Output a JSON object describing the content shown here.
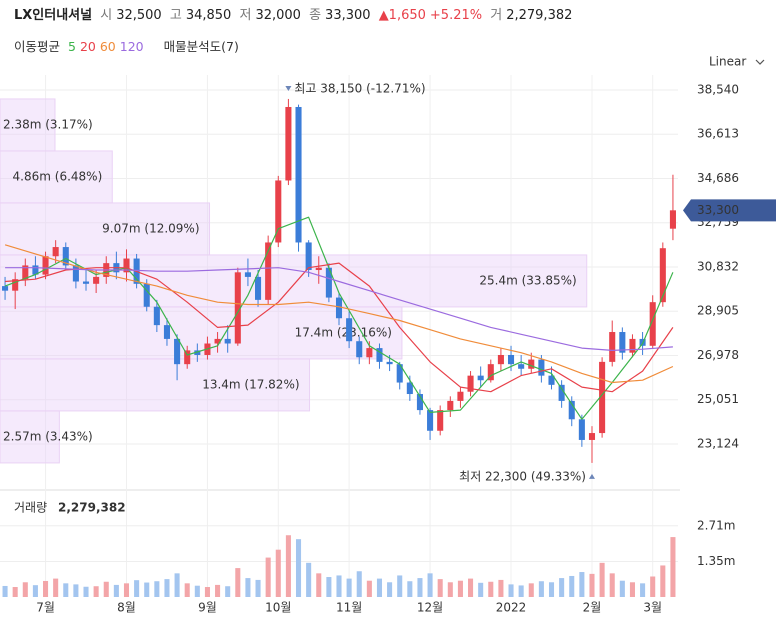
{
  "header": {
    "name": "LX인터내셔널",
    "open_label": "시",
    "open": "32,500",
    "high_label": "고",
    "high": "34,850",
    "low_label": "저",
    "low": "32,000",
    "close_label": "종",
    "close": "33,300",
    "change": "▲1,650",
    "change_pct": "+5.21%",
    "volume_label": "거",
    "volume": "2,279,382"
  },
  "chart_data": {
    "type": "candlestick",
    "scale_label": "Linear",
    "xlim": [
      -0.5,
      66.5
    ],
    "xticks": [
      {
        "value": 4,
        "label": "7월"
      },
      {
        "value": 12,
        "label": "8월"
      },
      {
        "value": 20,
        "label": "9월"
      },
      {
        "value": 27,
        "label": "10월"
      },
      {
        "value": 34,
        "label": "11월"
      },
      {
        "value": 42,
        "label": "12월"
      },
      {
        "value": 50,
        "label": "2022"
      },
      {
        "value": 58,
        "label": "2월"
      },
      {
        "value": 64,
        "label": "3월"
      }
    ],
    "ylim": [
      21338,
      38975
    ],
    "yticks": [
      {
        "value": 38540,
        "label": "38,540"
      },
      {
        "value": 36613,
        "label": "36,613"
      },
      {
        "value": 34686,
        "label": "34,686"
      },
      {
        "value": 32759,
        "label": "32,759"
      },
      {
        "value": 30832,
        "label": "30,832"
      },
      {
        "value": 28905,
        "label": "28,905"
      },
      {
        "value": 26978,
        "label": "26,978"
      },
      {
        "value": 25051,
        "label": "25,051"
      },
      {
        "value": 23124,
        "label": "23,124"
      }
    ],
    "grid": true,
    "up_color": "#e8414a",
    "down_color": "#3b7dd8",
    "open": [
      30000,
      29800,
      30300,
      30900,
      30500,
      31300,
      31700,
      30900,
      30200,
      30100,
      30400,
      31000,
      30600,
      31200,
      30100,
      29100,
      28300,
      27700,
      26600,
      27200,
      27000,
      27500,
      27700,
      27500,
      30600,
      30400,
      29400,
      31900,
      34600,
      37800,
      31900,
      30700,
      30800,
      29500,
      28600,
      27600,
      26900,
      27300,
      26700,
      26600,
      25800,
      25300,
      24600,
      23700,
      24600,
      25000,
      25400,
      26100,
      25900,
      26600,
      27000,
      26600,
      26400,
      26800,
      26100,
      25700,
      25000,
      24200,
      23300,
      23600,
      26700,
      28000,
      27100,
      27700,
      27400,
      29300,
      32500
    ],
    "high": [
      30400,
      30600,
      31200,
      31300,
      31500,
      32000,
      31900,
      31200,
      30700,
      30700,
      31300,
      31500,
      31600,
      31400,
      30300,
      29400,
      28600,
      27900,
      27400,
      27500,
      27800,
      28000,
      28300,
      30800,
      31200,
      30700,
      32200,
      34800,
      38150,
      37900,
      32000,
      31300,
      31000,
      29700,
      28900,
      27800,
      27600,
      27500,
      27000,
      26700,
      26100,
      25500,
      24700,
      24800,
      25200,
      25600,
      26300,
      26500,
      26800,
      27300,
      27400,
      27000,
      27100,
      27000,
      26500,
      25900,
      25200,
      24400,
      23900,
      26900,
      28500,
      28200,
      27900,
      28000,
      29600,
      31900,
      34850
    ],
    "low": [
      29400,
      29000,
      30000,
      30300,
      30300,
      31000,
      30700,
      29900,
      29800,
      29700,
      30100,
      30300,
      30200,
      29900,
      28900,
      28000,
      27400,
      25900,
      26400,
      26700,
      26800,
      27100,
      27100,
      27400,
      30000,
      29100,
      29200,
      31700,
      34400,
      31500,
      30400,
      30100,
      29300,
      28300,
      27300,
      26600,
      26600,
      26400,
      26300,
      25500,
      25000,
      24400,
      23300,
      23500,
      24300,
      24700,
      25200,
      25600,
      25800,
      26300,
      26300,
      26100,
      26200,
      25800,
      25500,
      24700,
      23900,
      23000,
      22300,
      23400,
      26500,
      26800,
      26900,
      27000,
      27300,
      29100,
      32000
    ],
    "close": [
      29800,
      30300,
      30900,
      30500,
      31300,
      31700,
      30900,
      30200,
      30100,
      30400,
      31000,
      30600,
      31200,
      30100,
      29100,
      28300,
      27700,
      26600,
      27200,
      27000,
      27500,
      27700,
      27500,
      30600,
      30400,
      29400,
      31900,
      34600,
      37800,
      31900,
      30700,
      30800,
      29500,
      28600,
      27600,
      26900,
      27300,
      26700,
      26600,
      25800,
      25300,
      24600,
      23700,
      24600,
      25000,
      25400,
      26100,
      25900,
      26600,
      27000,
      26600,
      26400,
      26800,
      26100,
      25700,
      25000,
      24200,
      23300,
      23600,
      26700,
      28000,
      27100,
      27700,
      27400,
      29300,
      31650,
      33300
    ],
    "moving_average_label": "이동평균",
    "moving_averages": [
      {
        "name": "5",
        "color": "#3cb44b",
        "x": [
          0,
          3,
          6,
          9,
          12,
          15,
          18,
          21,
          24,
          27,
          30,
          33,
          36,
          39,
          42,
          45,
          48,
          51,
          54,
          57,
          60,
          63,
          66
        ],
        "values": [
          30000,
          30500,
          31200,
          30500,
          30800,
          29300,
          27000,
          27400,
          29600,
          32500,
          33000,
          29700,
          27400,
          26600,
          24500,
          24600,
          26100,
          26700,
          26200,
          24200,
          25800,
          27500,
          30600
        ]
      },
      {
        "name": "20",
        "color": "#e8414a",
        "x": [
          0,
          3,
          6,
          9,
          12,
          15,
          18,
          21,
          24,
          27,
          30,
          33,
          36,
          39,
          42,
          45,
          48,
          51,
          54,
          57,
          60,
          63,
          66
        ],
        "values": [
          30200,
          30300,
          30700,
          30800,
          30800,
          30300,
          29300,
          28200,
          28300,
          29300,
          30800,
          31000,
          30000,
          28200,
          26700,
          25600,
          25400,
          26100,
          26400,
          25600,
          25400,
          26300,
          28200
        ]
      },
      {
        "name": "60",
        "color": "#f08c3a",
        "x": [
          0,
          3,
          6,
          9,
          12,
          15,
          18,
          21,
          24,
          27,
          30,
          33,
          36,
          39,
          42,
          45,
          48,
          51,
          54,
          57,
          60,
          63,
          66
        ],
        "values": [
          31800,
          31400,
          31000,
          30600,
          30300,
          30000,
          29600,
          29300,
          29200,
          29200,
          29300,
          29100,
          28800,
          28500,
          28100,
          27700,
          27400,
          27100,
          26700,
          26200,
          25800,
          25900,
          26500
        ]
      },
      {
        "name": "120",
        "color": "#9b6bdf",
        "x": [
          0,
          3,
          6,
          9,
          12,
          15,
          18,
          21,
          24,
          27,
          30,
          33,
          36,
          39,
          42,
          45,
          48,
          51,
          54,
          57,
          60,
          63,
          66
        ],
        "values": [
          30800,
          30800,
          30750,
          30700,
          30700,
          30650,
          30650,
          30700,
          30750,
          30800,
          30600,
          30200,
          29800,
          29400,
          29000,
          28600,
          28200,
          27900,
          27600,
          27300,
          27200,
          27250,
          27350
        ]
      }
    ],
    "volume_profile": {
      "label": "매물분석도(7)",
      "price_range": [
        22300,
        38150
      ],
      "values": [
        2.38,
        4.86,
        9.07,
        25.4,
        17.4,
        13.4,
        2.57
      ],
      "value_labels": [
        "2.38m (3.17%)",
        "4.86m (6.48%)",
        "9.07m (12.09%)",
        "25.4m (33.85%)",
        "17.4m (23.16%)",
        "13.4m (17.82%)",
        "2.57m (3.43%)"
      ]
    },
    "annotations": {
      "high": {
        "index": 28,
        "value": 38150,
        "label": "최고 38,150 (-12.71%)"
      },
      "low": {
        "index": 58,
        "value": 22300,
        "label": "최저 22,300 (49.33%)"
      }
    },
    "last_price": {
      "value": 33300,
      "label": "33,300"
    },
    "volume": {
      "label": "거래량",
      "last_label": "2,279,382",
      "ylim": [
        0,
        3500000
      ],
      "yticks": [
        {
          "value": 2710000,
          "label": "2.71m"
        },
        {
          "value": 1350000,
          "label": "1.35m"
        }
      ],
      "values": [
        420000,
        380000,
        560000,
        450000,
        610000,
        700000,
        520000,
        480000,
        390000,
        410000,
        580000,
        460000,
        520000,
        640000,
        550000,
        600000,
        680000,
        900000,
        520000,
        430000,
        380000,
        460000,
        410000,
        1100000,
        720000,
        650000,
        1500000,
        1800000,
        2350000,
        2200000,
        1300000,
        900000,
        760000,
        820000,
        700000,
        980000,
        620000,
        700000,
        560000,
        820000,
        600000,
        720000,
        900000,
        680000,
        560000,
        620000,
        700000,
        540000,
        580000,
        650000,
        480000,
        440000,
        520000,
        600000,
        560000,
        720000,
        800000,
        950000,
        880000,
        1300000,
        900000,
        620000,
        560000,
        520000,
        780000,
        1200000,
        2279382
      ]
    }
  }
}
